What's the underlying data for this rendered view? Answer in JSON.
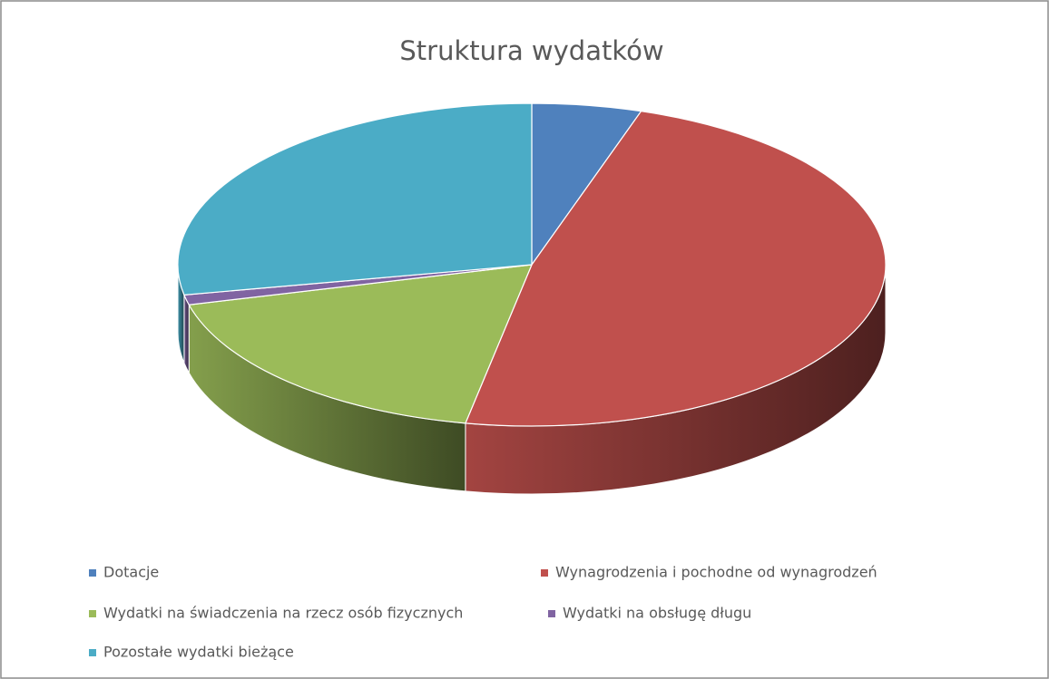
{
  "chart_data": {
    "type": "pie3d",
    "title": "Struktura wydatków",
    "categories": [
      "Dotacje",
      "Wynagrodzenia i pochodne od wynagrodzeń",
      "Wydatki na świadczenia na rzecz osób fizycznych",
      "Wydatki na obsługę długu",
      "Pozostałe wydatki bieżące"
    ],
    "values": [
      5,
      48,
      18,
      1,
      28
    ],
    "colors": [
      "#4f81bd",
      "#c0504d",
      "#9bbb59",
      "#8064a2",
      "#4bacc6"
    ],
    "legend": "bottom"
  }
}
